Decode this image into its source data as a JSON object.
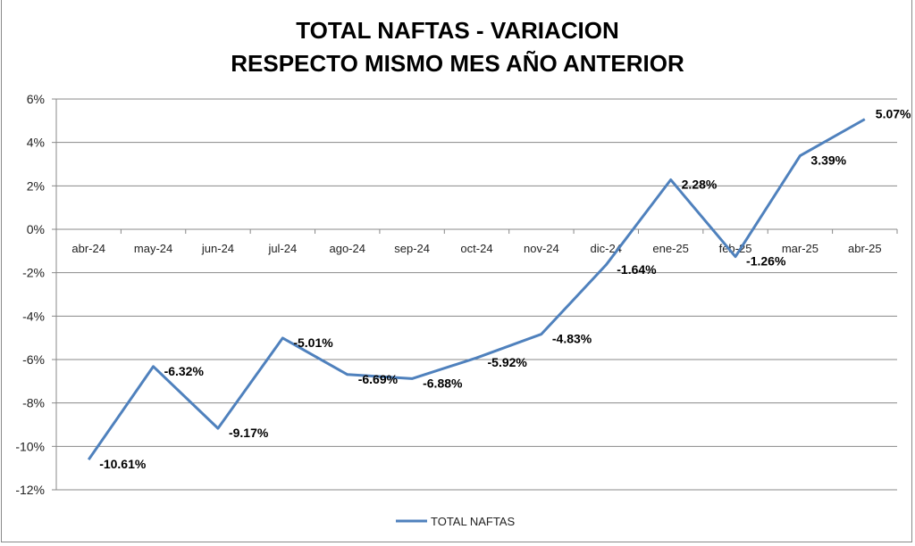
{
  "chart_data": {
    "type": "line",
    "title_lines": [
      "TOTAL NAFTAS - VARIACION",
      "RESPECTO MISMO MES AÑO ANTERIOR"
    ],
    "categories": [
      "abr-24",
      "may-24",
      "jun-24",
      "jul-24",
      "ago-24",
      "sep-24",
      "oct-24",
      "nov-24",
      "dic-24",
      "ene-25",
      "feb-25",
      "mar-25",
      "abr-25"
    ],
    "series": [
      {
        "name": "TOTAL NAFTAS",
        "color": "#4f81bd",
        "values": [
          -10.61,
          -6.32,
          -9.17,
          -5.01,
          -6.69,
          -6.88,
          -5.92,
          -4.83,
          -1.64,
          2.28,
          -1.26,
          3.39,
          5.07
        ],
        "labels": [
          "-10.61%",
          "-6.32%",
          "-9.17%",
          "-5.01%",
          "-6.69%",
          "-6.88%",
          "-5.92%",
          "-4.83%",
          "-1.64%",
          "2.28%",
          "-1.26%",
          "3.39%",
          "5.07%"
        ]
      }
    ],
    "ylim": [
      -12,
      6
    ],
    "yticks": [
      6,
      4,
      2,
      0,
      -2,
      -4,
      -6,
      -8,
      -10,
      -12
    ],
    "ytick_labels": [
      "6%",
      "4%",
      "2%",
      "0%",
      "-2%",
      "-4%",
      "-6%",
      "-8%",
      "-10%",
      "-12%"
    ],
    "grid": true,
    "legend": "bottom",
    "xlabel": "",
    "ylabel": ""
  }
}
